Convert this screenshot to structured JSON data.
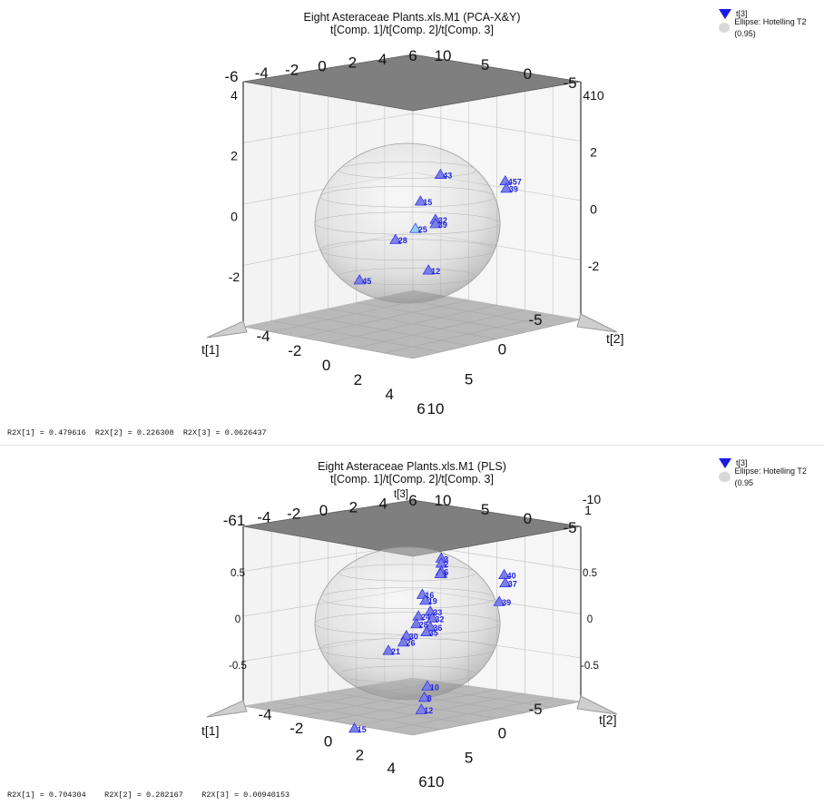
{
  "chart_data": [
    {
      "type": "scatter",
      "dims": 3,
      "title": "Eight Asteraceae Plants.xls.M1 (PCA-X&Y)",
      "subtitle": "t[Comp. 1]/t[Comp. 2]/t[Comp. 3]",
      "axes": {
        "x": "t[1]",
        "y": "t[2]",
        "z": ""
      },
      "legend": {
        "position": "top-right",
        "marker_label": "t[3]",
        "ellipse_label": "Ellipse: Hotelling T2 (0.95)"
      },
      "colors": {
        "marker": "#1a1ae6",
        "marker_light": "#7b7fe6",
        "highlight": "#8fd0f0",
        "ellipse": "#c9c9c9"
      },
      "ticks": {
        "left_top": [
          "-6",
          "-4",
          "-2",
          "0",
          "2",
          "4",
          "6"
        ],
        "right_top": [
          "10",
          "5",
          "0",
          "-5"
        ],
        "z_left": [
          "4",
          "2",
          "0",
          "-2"
        ],
        "z_right": [
          "410",
          "2",
          "0",
          "-2"
        ],
        "floor_x": [
          "-4",
          "-2",
          "0",
          "2",
          "4",
          "6"
        ],
        "floor_y": [
          "-5",
          "0",
          "5",
          "10"
        ]
      },
      "points": [
        {
          "label": "43",
          "t1": -4.6,
          "t2": -1.3,
          "t3": 1.0
        },
        {
          "label": "15",
          "t1": -1.5,
          "t2": -0.2,
          "t3": 0.7
        },
        {
          "label": "32",
          "t1": -0.8,
          "t2": 2.0,
          "t3": 0.5
        },
        {
          "label": "39",
          "t1": -0.6,
          "t2": 2.2,
          "t3": 0.4
        },
        {
          "label": "25",
          "t1": -0.2,
          "t2": 0.6,
          "t3": 0.0,
          "highlight": true
        },
        {
          "label": "28",
          "t1": 0.9,
          "t2": -0.3,
          "t3": -0.4
        },
        {
          "label": "45",
          "t1": 3.8,
          "t2": -1.0,
          "t3": -1.6
        },
        {
          "label": "12",
          "t1": 1.5,
          "t2": 3.6,
          "t3": -0.8
        },
        {
          "label": "457",
          "t1": -3.5,
          "t2": 6.3,
          "t3": 2.3
        },
        {
          "label": "39",
          "t1": -3.3,
          "t2": 6.6,
          "t3": 2.1
        }
      ],
      "stats": "R2X[1] = 0.479616  R2X[2] = 0.226308  R2X[3] = 0.0626437"
    },
    {
      "type": "scatter",
      "dims": 3,
      "title": "Eight Asteraceae Plants.xls.M1 (PLS)",
      "subtitle": "t[Comp. 1]/t[Comp. 2]/t[Comp. 3]",
      "axes": {
        "x": "t[1]",
        "y": "t[2]",
        "z": "t[3]"
      },
      "legend": {
        "position": "top-right",
        "marker_label": "t[3]",
        "ellipse_label": "Ellipse: Hotelling T2 (0.95"
      },
      "colors": {
        "marker": "#1a1ae6",
        "marker_light": "#7b7fe6",
        "highlight": "#8fd0f0",
        "ellipse": "#c9c9c9"
      },
      "ticks": {
        "left_top": [
          "-61",
          "-4",
          "-2",
          "0",
          "2",
          "4",
          "6"
        ],
        "right_top": [
          "10",
          "5",
          "0",
          "-5"
        ],
        "z_left": [
          "0.5",
          "0",
          "-0.5"
        ],
        "z_right": [
          "0.5",
          "0",
          "-0.5"
        ],
        "z_corner_right": [
          "-10",
          "1"
        ],
        "floor_x": [
          "-4",
          "-2",
          "0",
          "2",
          "4",
          "6"
        ],
        "floor_y": [
          "-5",
          "0",
          "5",
          "10"
        ]
      },
      "points": [
        {
          "label": "3",
          "t1": -4.6,
          "t2": -1.3,
          "t3": 0.42
        },
        {
          "label": "2",
          "t1": -4.7,
          "t2": -1.4,
          "t3": 0.36
        },
        {
          "label": "6",
          "t1": -4.5,
          "t2": -1.2,
          "t3": 0.3
        },
        {
          "label": "1",
          "t1": -4.6,
          "t2": -1.4,
          "t3": 0.26
        },
        {
          "label": "16",
          "t1": -1.2,
          "t2": 0.2,
          "t3": 0.28
        },
        {
          "label": "19",
          "t1": -1.8,
          "t2": -0.1,
          "t3": 0.18
        },
        {
          "label": "33",
          "t1": -0.4,
          "t2": 1.8,
          "t3": 0.22
        },
        {
          "label": "32",
          "t1": -0.3,
          "t2": 2.1,
          "t3": 0.17
        },
        {
          "label": "36",
          "t1": 0.0,
          "t2": 2.2,
          "t3": 0.1
        },
        {
          "label": "35",
          "t1": 0.2,
          "t2": 2.0,
          "t3": 0.05
        },
        {
          "label": "24",
          "t1": -0.6,
          "t2": 0.4,
          "t3": 0.1
        },
        {
          "label": "28",
          "t1": -0.3,
          "t2": 0.5,
          "t3": 0.04
        },
        {
          "label": "30",
          "t1": 0.4,
          "t2": 0.2,
          "t3": -0.06
        },
        {
          "label": "26",
          "t1": 0.6,
          "t2": 0.1,
          "t3": -0.12
        },
        {
          "label": "21",
          "t1": 1.4,
          "t2": -0.6,
          "t3": -0.2
        },
        {
          "label": "10",
          "t1": 1.4,
          "t2": 3.3,
          "t3": -0.38
        },
        {
          "label": "8",
          "t1": 1.9,
          "t2": 3.5,
          "t3": -0.46
        },
        {
          "label": "12",
          "t1": 2.3,
          "t2": 3.6,
          "t3": -0.56
        },
        {
          "label": "15",
          "t1": 4.2,
          "t2": -1.2,
          "t3": -0.88
        },
        {
          "label": "40",
          "t1": -3.4,
          "t2": 6.2,
          "t3": 0.65
        },
        {
          "label": "37",
          "t1": -3.1,
          "t2": 6.6,
          "t3": 0.6
        },
        {
          "label": "39",
          "t1": -2.5,
          "t2": 6.6,
          "t3": 0.44
        }
      ],
      "stats": "R2X[1] = 0.704304    R2X[2] = 0.282167    R2X[3] = 0.00940153"
    }
  ]
}
